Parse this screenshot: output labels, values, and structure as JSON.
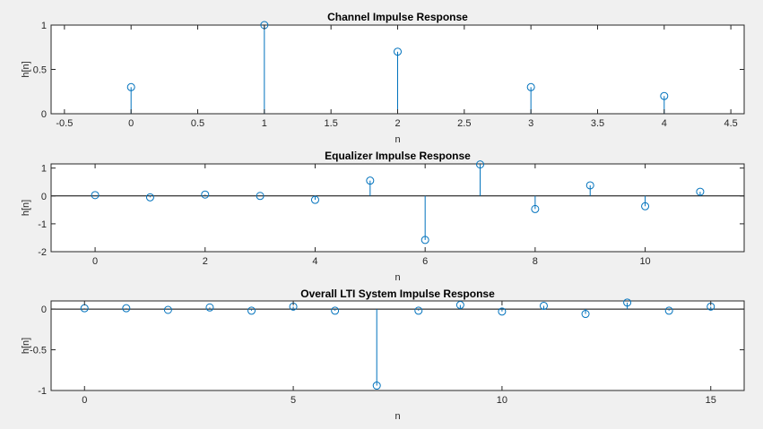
{
  "colors": {
    "background": "#f0f0f0",
    "axes_background": "#ffffff",
    "stem": "#0072bd",
    "axis": "#262626"
  },
  "chart_data": [
    {
      "type": "stem",
      "title": "Channel Impulse Response",
      "xlabel": "n",
      "ylabel": "h[n]",
      "xlim": [
        -0.6,
        4.6
      ],
      "ylim": [
        0,
        1
      ],
      "xticks": [
        -0.5,
        0,
        0.5,
        1,
        1.5,
        2,
        2.5,
        3,
        3.5,
        4,
        4.5
      ],
      "xtick_labels": [
        "-0.5",
        "0",
        "0.5",
        "1",
        "1.5",
        "2",
        "2.5",
        "3",
        "3.5",
        "4",
        "4.5"
      ],
      "yticks": [
        0,
        0.5,
        1
      ],
      "ytick_labels": [
        "0",
        "0.5",
        "1"
      ],
      "baseline": false,
      "x": [
        0,
        1,
        2,
        3,
        4
      ],
      "y": [
        0.3,
        1.0,
        0.7,
        0.3,
        0.2
      ]
    },
    {
      "type": "stem",
      "title": "Equalizer Impulse Response",
      "xlabel": "n",
      "ylabel": "h[n]",
      "xlim": [
        -0.8,
        11.8
      ],
      "ylim": [
        -2,
        1.15
      ],
      "xticks": [
        0,
        2,
        4,
        6,
        8,
        10
      ],
      "xtick_labels": [
        "0",
        "2",
        "4",
        "6",
        "8",
        "10"
      ],
      "yticks": [
        -2,
        -1,
        0,
        1
      ],
      "ytick_labels": [
        "-2",
        "-1",
        "0",
        "1"
      ],
      "baseline": true,
      "x": [
        0,
        1,
        2,
        3,
        4,
        5,
        6,
        7,
        8,
        9,
        10,
        11
      ],
      "y": [
        0.03,
        -0.05,
        0.05,
        0.0,
        -0.14,
        0.55,
        -1.58,
        1.13,
        -0.47,
        0.38,
        -0.37,
        0.15
      ]
    },
    {
      "type": "stem",
      "title": "Overall LTI System Impulse Response",
      "xlabel": "n",
      "ylabel": "h[n]",
      "xlim": [
        -0.8,
        15.8
      ],
      "ylim": [
        -1,
        0.1
      ],
      "xticks": [
        0,
        5,
        10,
        15
      ],
      "xtick_labels": [
        "0",
        "5",
        "10",
        "15"
      ],
      "yticks": [
        -1,
        -0.5,
        0
      ],
      "ytick_labels": [
        "-1",
        "-0.5",
        "0"
      ],
      "baseline": true,
      "x": [
        0,
        1,
        2,
        3,
        4,
        5,
        6,
        7,
        8,
        9,
        10,
        11,
        12,
        13,
        14,
        15
      ],
      "y": [
        0.01,
        0.01,
        -0.01,
        0.02,
        -0.02,
        0.03,
        -0.02,
        -0.94,
        -0.02,
        0.05,
        -0.03,
        0.04,
        -0.06,
        0.08,
        -0.02,
        0.03
      ]
    }
  ]
}
